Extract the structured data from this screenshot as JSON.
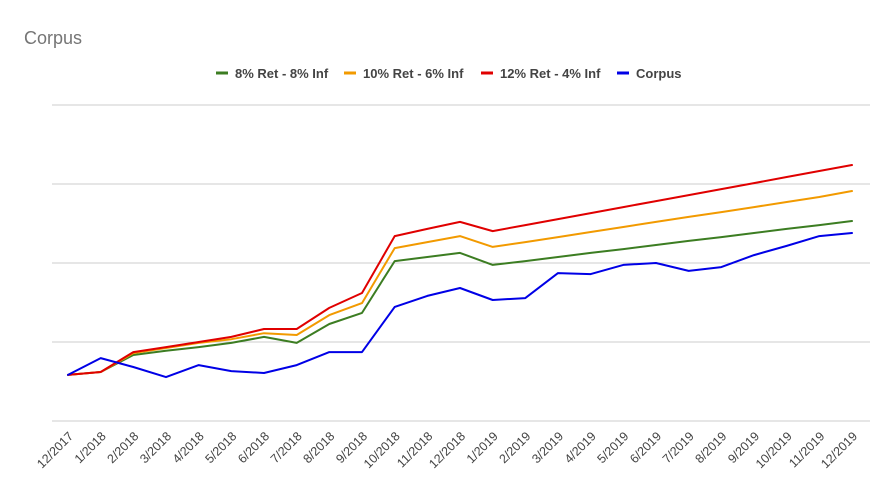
{
  "chart_data": {
    "type": "line",
    "title": "Corpus",
    "xlabel": "",
    "ylabel": "",
    "legend": "top",
    "grid": true,
    "ylim": [
      0,
      100
    ],
    "categories": [
      "12/2017",
      "1/2018",
      "2/2018",
      "3/2018",
      "4/2018",
      "5/2018",
      "6/2018",
      "7/2018",
      "8/2018",
      "9/2018",
      "10/2018",
      "11/2018",
      "12/2018",
      "1/2019",
      "2/2019",
      "3/2019",
      "4/2019",
      "5/2019",
      "6/2019",
      "7/2019",
      "8/2019",
      "9/2019",
      "10/2019",
      "11/2019",
      "12/2019"
    ],
    "series": [
      {
        "name": "8% Ret - 8% Inf",
        "color": "#3c7d22",
        "values": [
          14.6,
          15.5,
          20.9,
          22.2,
          23.4,
          24.7,
          26.6,
          24.7,
          30.7,
          34.2,
          50.6,
          51.9,
          53.2,
          49.4,
          50.6,
          51.9,
          53.2,
          54.4,
          55.7,
          57.0,
          58.2,
          59.5,
          60.8,
          62.0,
          63.3
        ]
      },
      {
        "name": "10% Ret - 6% Inf",
        "color": "#f29a00",
        "values": [
          14.6,
          15.5,
          21.5,
          23.1,
          24.7,
          25.9,
          27.8,
          27.2,
          33.5,
          37.3,
          54.7,
          56.6,
          58.5,
          55.1,
          56.6,
          58.2,
          59.8,
          61.4,
          63.0,
          64.6,
          66.1,
          67.7,
          69.3,
          70.9,
          72.8
        ]
      },
      {
        "name": "12% Ret - 4% Inf",
        "color": "#e00000",
        "values": [
          14.6,
          15.5,
          21.8,
          23.4,
          25.0,
          26.6,
          29.1,
          29.1,
          35.8,
          40.5,
          58.5,
          60.8,
          63.0,
          60.1,
          62.0,
          63.9,
          65.8,
          67.7,
          69.6,
          71.5,
          73.4,
          75.3,
          77.2,
          79.1,
          81.0
        ]
      },
      {
        "name": "Corpus",
        "color": "#0000e6",
        "values": [
          14.6,
          19.9,
          17.1,
          13.9,
          17.7,
          15.8,
          15.2,
          17.7,
          21.8,
          21.8,
          36.1,
          39.6,
          42.1,
          38.3,
          38.9,
          46.8,
          46.5,
          49.4,
          50.0,
          47.5,
          48.7,
          52.5,
          55.4,
          58.5,
          59.5
        ]
      }
    ]
  }
}
